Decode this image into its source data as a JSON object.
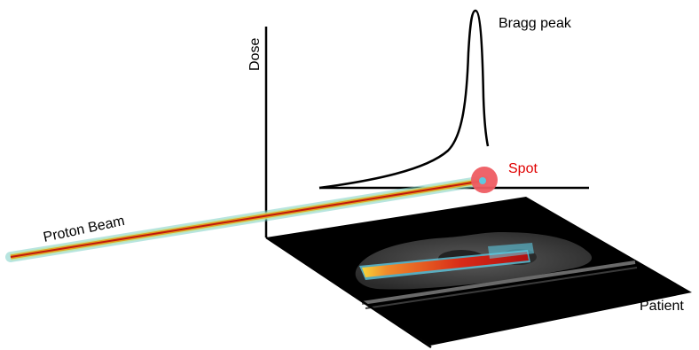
{
  "labels": {
    "bragg_peak": "Bragg peak",
    "dose": "Dose",
    "spot": "Spot",
    "proton_beam": "Proton Beam",
    "patient": "Patient"
  },
  "colors": {
    "axis": "#000000",
    "spot_fill": "#ee5c62",
    "spot_text": "#e00000",
    "beam_core": "#c21a0b",
    "beam_mid": "#e0a320",
    "beam_outer": "#7fd0c8",
    "ct_slice": "#000000"
  }
}
